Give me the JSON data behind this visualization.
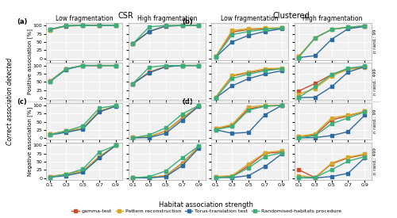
{
  "x": [
    0.1,
    0.3,
    0.5,
    0.7,
    0.9
  ],
  "colors": {
    "gamma": "#C8502A",
    "pattern": "#D4A82A",
    "torus": "#2E6B9E",
    "random": "#3AAF7A"
  },
  "marker": "s",
  "markersize": 2.5,
  "linewidth": 1.0,
  "panel_a_row1_low": {
    "gamma": [
      87,
      99,
      100,
      100,
      100
    ],
    "pattern": [
      87,
      99,
      100,
      100,
      100
    ],
    "torus": [
      88,
      99,
      100,
      100,
      100
    ],
    "random": [
      88,
      100,
      100,
      100,
      100
    ]
  },
  "panel_a_row1_high": {
    "gamma": [
      44,
      82,
      99,
      100,
      100
    ],
    "pattern": [
      44,
      82,
      99,
      100,
      100
    ],
    "torus": [
      44,
      82,
      98,
      100,
      100
    ],
    "random": [
      44,
      96,
      100,
      100,
      100
    ]
  },
  "panel_a_row2_low": {
    "gamma": [
      52,
      90,
      100,
      100,
      100
    ],
    "pattern": [
      52,
      90,
      100,
      100,
      100
    ],
    "torus": [
      50,
      88,
      100,
      100,
      100
    ],
    "random": [
      50,
      90,
      100,
      100,
      100
    ]
  },
  "panel_a_row2_high": {
    "gamma": [
      44,
      80,
      97,
      100,
      100
    ],
    "pattern": [
      44,
      78,
      97,
      100,
      100
    ],
    "torus": [
      44,
      78,
      96,
      100,
      100
    ],
    "random": [
      44,
      95,
      100,
      100,
      100
    ]
  },
  "panel_b_row1_low": {
    "gamma": [
      5,
      80,
      88,
      90,
      92
    ],
    "pattern": [
      5,
      85,
      90,
      92,
      93
    ],
    "torus": [
      3,
      50,
      70,
      82,
      90
    ],
    "random": [
      3,
      72,
      82,
      88,
      92
    ]
  },
  "panel_b_row1_high": {
    "gamma": [
      5,
      62,
      88,
      95,
      98
    ],
    "pattern": [
      5,
      62,
      88,
      95,
      98
    ],
    "torus": [
      2,
      8,
      58,
      90,
      97
    ],
    "random": [
      2,
      62,
      88,
      95,
      99
    ]
  },
  "panel_b_row2_low": {
    "gamma": [
      3,
      68,
      78,
      88,
      90
    ],
    "pattern": [
      3,
      70,
      80,
      90,
      92
    ],
    "torus": [
      1,
      38,
      60,
      74,
      84
    ],
    "random": [
      1,
      60,
      74,
      84,
      90
    ]
  },
  "panel_b_row2_high": {
    "gamma": [
      22,
      45,
      72,
      90,
      96
    ],
    "pattern": [
      12,
      30,
      68,
      88,
      94
    ],
    "torus": [
      2,
      3,
      35,
      80,
      96
    ],
    "random": [
      2,
      35,
      72,
      92,
      98
    ]
  },
  "panel_c_row1_low": {
    "gamma": [
      12,
      22,
      30,
      82,
      98
    ],
    "pattern": [
      12,
      22,
      30,
      84,
      98
    ],
    "torus": [
      10,
      18,
      28,
      80,
      98
    ],
    "random": [
      10,
      22,
      38,
      92,
      100
    ]
  },
  "panel_c_row1_high": {
    "gamma": [
      3,
      5,
      22,
      62,
      98
    ],
    "pattern": [
      3,
      5,
      22,
      60,
      98
    ],
    "torus": [
      1,
      2,
      15,
      55,
      98
    ],
    "random": [
      1,
      10,
      32,
      74,
      100
    ]
  },
  "panel_c_row2_low": {
    "gamma": [
      5,
      12,
      22,
      66,
      100
    ],
    "pattern": [
      5,
      12,
      22,
      66,
      100
    ],
    "torus": [
      3,
      8,
      18,
      62,
      100
    ],
    "random": [
      3,
      12,
      28,
      80,
      100
    ]
  },
  "panel_c_row2_high": {
    "gamma": [
      1,
      2,
      8,
      46,
      96
    ],
    "pattern": [
      1,
      2,
      8,
      44,
      96
    ],
    "torus": [
      1,
      1,
      5,
      38,
      92
    ],
    "random": [
      1,
      5,
      22,
      62,
      98
    ]
  },
  "panel_d_row1_low": {
    "gamma": [
      30,
      38,
      90,
      98,
      100
    ],
    "pattern": [
      30,
      42,
      96,
      100,
      100
    ],
    "torus": [
      26,
      15,
      18,
      72,
      100
    ],
    "random": [
      26,
      36,
      86,
      98,
      100
    ]
  },
  "panel_d_row1_high": {
    "gamma": [
      5,
      10,
      56,
      68,
      82
    ],
    "pattern": [
      5,
      14,
      62,
      70,
      82
    ],
    "torus": [
      1,
      2,
      8,
      20,
      70
    ],
    "random": [
      1,
      8,
      44,
      62,
      80
    ]
  },
  "panel_d_row2_low": {
    "gamma": [
      5,
      5,
      38,
      76,
      80
    ],
    "pattern": [
      5,
      8,
      44,
      78,
      84
    ],
    "torus": [
      2,
      2,
      8,
      36,
      74
    ],
    "random": [
      2,
      5,
      32,
      66,
      78
    ]
  },
  "panel_d_row2_high": {
    "gamma": [
      26,
      2,
      44,
      62,
      72
    ],
    "pattern": [
      8,
      2,
      46,
      64,
      74
    ],
    "torus": [
      1,
      1,
      5,
      15,
      62
    ],
    "random": [
      1,
      3,
      26,
      52,
      66
    ]
  },
  "xlabel": "Habitat association strength",
  "background_color": "#f0f0f0",
  "legend_labels": [
    "gamma-test",
    "Pattern reconstruction",
    "Torus-translation test",
    "Randomised-habitats procedure"
  ]
}
